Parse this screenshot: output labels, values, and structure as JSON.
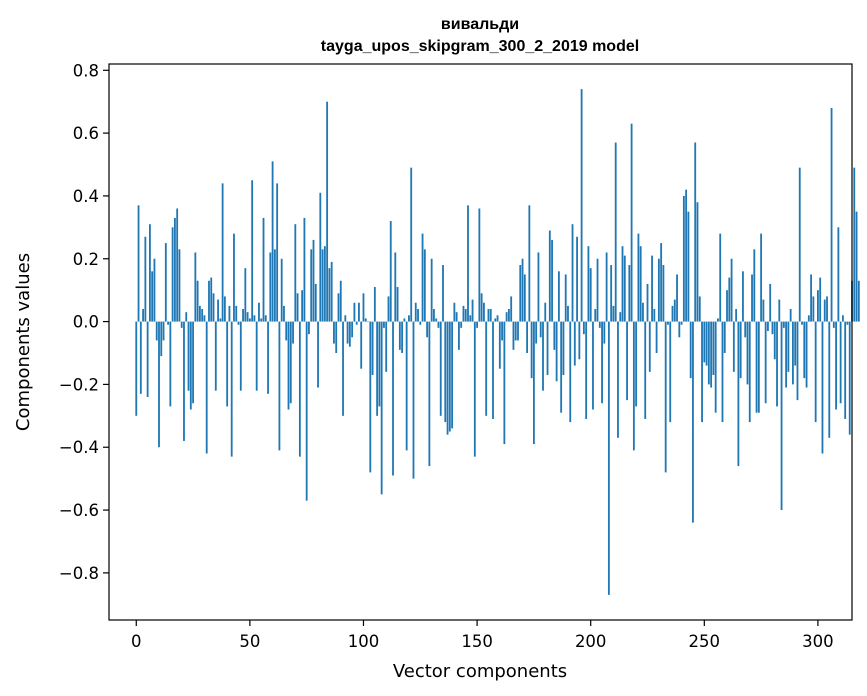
{
  "chart_data": {
    "type": "bar",
    "title_line1": "вивальди",
    "title_line2": "tayga_upos_skipgram_300_2_2019 model",
    "xlabel": "Vector components",
    "ylabel": "Components values",
    "xlim": [
      -12,
      315
    ],
    "ylim": [
      -0.95,
      0.82
    ],
    "xticks": [
      {
        "value": 0,
        "label": "0"
      },
      {
        "value": 50,
        "label": "50"
      },
      {
        "value": 100,
        "label": "100"
      },
      {
        "value": 150,
        "label": "150"
      },
      {
        "value": 200,
        "label": "200"
      },
      {
        "value": 250,
        "label": "250"
      },
      {
        "value": 300,
        "label": "300"
      }
    ],
    "yticks": [
      {
        "value": 0.8,
        "label": "0.8"
      },
      {
        "value": 0.6,
        "label": "0.6"
      },
      {
        "value": 0.4,
        "label": "0.4"
      },
      {
        "value": 0.2,
        "label": "0.2"
      },
      {
        "value": 0.0,
        "label": "0.0"
      },
      {
        "value": -0.2,
        "label": "−0.2"
      },
      {
        "value": -0.4,
        "label": "−0.4"
      },
      {
        "value": -0.6,
        "label": "−0.6"
      },
      {
        "value": -0.8,
        "label": "−0.8"
      }
    ],
    "bar_color": "#1f77b4",
    "values": [
      -0.3,
      0.37,
      -0.23,
      0.04,
      0.27,
      -0.24,
      0.31,
      0.16,
      0.2,
      -0.06,
      -0.4,
      -0.11,
      -0.06,
      0.25,
      -0.01,
      -0.27,
      0.3,
      0.33,
      0.36,
      0.23,
      -0.02,
      -0.38,
      0.03,
      -0.22,
      -0.28,
      -0.26,
      0.22,
      0.13,
      0.05,
      0.04,
      0.02,
      -0.42,
      0.13,
      0.14,
      0.09,
      -0.22,
      0.07,
      0.01,
      0.44,
      0.08,
      -0.27,
      0.05,
      -0.43,
      0.28,
      0.05,
      -0.01,
      -0.22,
      0.04,
      0.17,
      0.03,
      0.01,
      0.45,
      0.02,
      -0.22,
      0.06,
      0.01,
      0.33,
      0.02,
      -0.23,
      0.22,
      0.51,
      0.23,
      0.44,
      -0.41,
      0.2,
      0.05,
      -0.06,
      -0.28,
      -0.26,
      -0.07,
      0.31,
      0.09,
      -0.43,
      0.1,
      0.33,
      -0.57,
      -0.04,
      0.23,
      0.26,
      0.12,
      -0.21,
      0.41,
      0.23,
      0.24,
      0.7,
      0.17,
      0.19,
      -0.07,
      -0.1,
      0.09,
      0.13,
      -0.3,
      0.02,
      -0.07,
      -0.08,
      -0.05,
      0.06,
      -0.01,
      0.06,
      -0.15,
      0.09,
      0.01,
      0.0,
      -0.48,
      -0.17,
      0.11,
      -0.3,
      -0.27,
      -0.55,
      -0.02,
      -0.16,
      0.08,
      0.32,
      -0.49,
      0.22,
      0.11,
      -0.09,
      -0.1,
      0.01,
      -0.41,
      0.02,
      0.49,
      -0.5,
      0.06,
      0.04,
      -0.01,
      0.28,
      0.23,
      -0.05,
      -0.46,
      0.2,
      0.04,
      0.01,
      -0.02,
      -0.3,
      0.18,
      -0.32,
      -0.36,
      -0.35,
      -0.34,
      0.06,
      0.03,
      -0.09,
      -0.02,
      0.05,
      0.04,
      0.37,
      0.02,
      0.07,
      -0.43,
      -0.02,
      0.36,
      0.09,
      0.06,
      -0.3,
      0.04,
      0.04,
      -0.31,
      0.01,
      0.02,
      -0.15,
      -0.06,
      -0.39,
      0.03,
      0.04,
      0.08,
      -0.09,
      -0.06,
      -0.06,
      0.18,
      0.2,
      0.15,
      -0.1,
      0.37,
      -0.18,
      -0.39,
      -0.07,
      0.22,
      -0.05,
      -0.22,
      0.06,
      -0.17,
      0.29,
      0.26,
      -0.09,
      -0.19,
      0.16,
      -0.29,
      -0.17,
      0.15,
      0.05,
      -0.32,
      0.31,
      -0.14,
      0.27,
      -0.12,
      0.74,
      -0.04,
      -0.31,
      0.24,
      0.17,
      -0.28,
      0.04,
      0.2,
      -0.02,
      -0.26,
      -0.07,
      0.22,
      -0.87,
      0.18,
      0.05,
      0.57,
      -0.37,
      0.03,
      0.24,
      0.21,
      -0.25,
      0.18,
      0.63,
      -0.41,
      -0.27,
      0.28,
      0.24,
      0.06,
      -0.31,
      0.12,
      -0.16,
      0.21,
      0.04,
      -0.1,
      0.2,
      0.25,
      0.18,
      -0.48,
      -0.01,
      -0.32,
      0.05,
      0.07,
      0.15,
      -0.05,
      -0.01,
      0.4,
      0.42,
      0.35,
      -0.18,
      -0.64,
      0.57,
      0.38,
      0.08,
      -0.32,
      -0.13,
      -0.14,
      -0.2,
      -0.21,
      -0.17,
      -0.29,
      0.01,
      0.28,
      -0.32,
      -0.1,
      0.1,
      0.14,
      0.2,
      -0.16,
      0.04,
      -0.46,
      -0.18,
      0.16,
      -0.05,
      -0.2,
      -0.32,
      0.15,
      0.23,
      -0.29,
      -0.29,
      0.28,
      0.07,
      -0.26,
      -0.03,
      0.12,
      -0.04,
      -0.12,
      -0.27,
      0.07,
      -0.6,
      -0.02,
      -0.21,
      -0.16,
      0.04,
      -0.2,
      -0.14,
      -0.25,
      0.49,
      -0.01,
      -0.18,
      -0.21,
      0.02,
      0.15,
      0.08,
      -0.32,
      0.1,
      0.14,
      -0.42,
      0.07,
      0.08,
      -0.37,
      0.68,
      -0.02,
      -0.28,
      0.3,
      -0.26,
      0.02,
      -0.31,
      -0.01,
      -0.36,
      0.13,
      0.49,
      0.35,
      0.13
    ]
  }
}
